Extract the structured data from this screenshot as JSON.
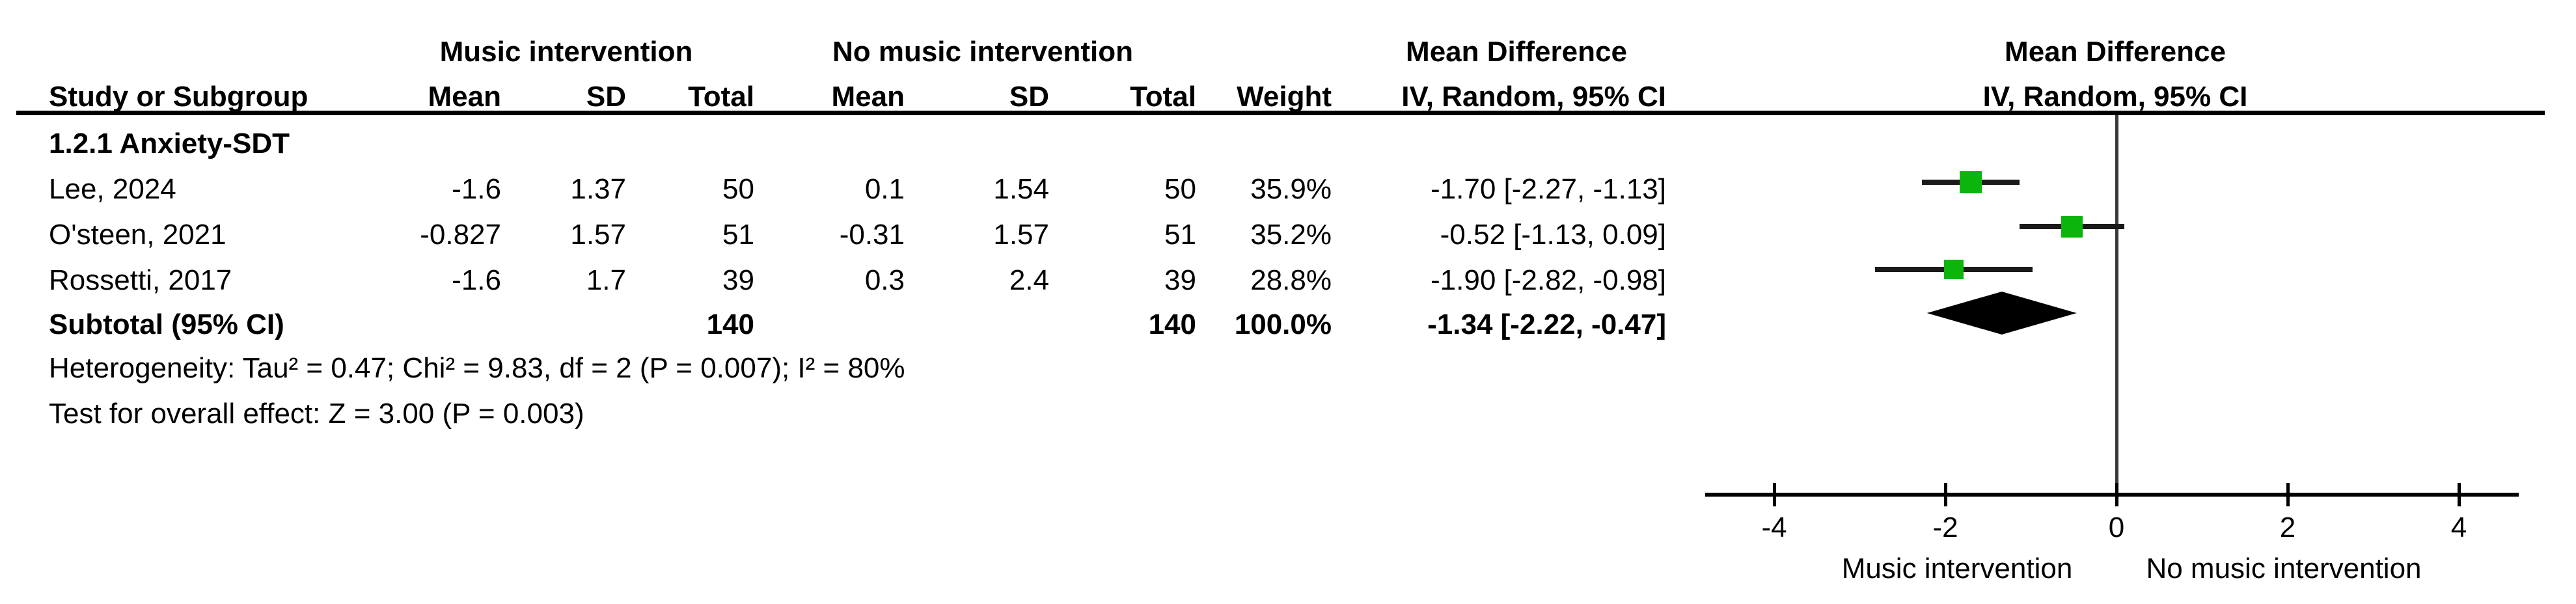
{
  "title_row": {
    "group1": "Music intervention",
    "group2": "No music intervention",
    "md_text": "Mean Difference",
    "md_plot": "Mean Difference"
  },
  "columns": {
    "study": "Study or Subgroup",
    "mean1": "Mean",
    "sd1": "SD",
    "total1": "Total",
    "mean2": "Mean",
    "sd2": "SD",
    "total2": "Total",
    "weight": "Weight",
    "ci_text": "IV, Random, 95% CI",
    "ci_plot": "IV, Random, 95% CI"
  },
  "group_label": "1.2.1 Anxiety-SDT",
  "rows": [
    {
      "study": "Lee, 2024",
      "mean1": "-1.6",
      "sd1": "1.37",
      "total1": "50",
      "mean2": "0.1",
      "sd2": "1.54",
      "total2": "50",
      "weight": "35.9%",
      "ci": "-1.70 [-2.27, -1.13]"
    },
    {
      "study": "O'steen, 2021",
      "mean1": "-0.827",
      "sd1": "1.57",
      "total1": "51",
      "mean2": "-0.31",
      "sd2": "1.57",
      "total2": "51",
      "weight": "35.2%",
      "ci": "-0.52 [-1.13, 0.09]"
    },
    {
      "study": "Rossetti, 2017",
      "mean1": "-1.6",
      "sd1": "1.7",
      "total1": "39",
      "mean2": "0.3",
      "sd2": "2.4",
      "total2": "39",
      "weight": "28.8%",
      "ci": "-1.90 [-2.82, -0.98]"
    }
  ],
  "subtotal": {
    "label": "Subtotal (95% CI)",
    "total1": "140",
    "total2": "140",
    "weight": "100.0%",
    "ci": "-1.34 [-2.22, -0.47]"
  },
  "stats": {
    "heterogeneity": "Heterogeneity: Tau² = 0.47; Chi² = 9.83, df = 2 (P = 0.007); I² = 80%",
    "overall": "Test for overall effect: Z = 3.00 (P = 0.003)"
  },
  "axis_labels": {
    "left": "Music intervention",
    "right": "No music intervention"
  },
  "chart_data": {
    "type": "forest",
    "title": "Mean Difference",
    "effect_measure": "IV, Random, 95% CI",
    "subgroup": "1.2.1 Anxiety-SDT",
    "studies": [
      {
        "name": "Lee, 2024",
        "est": -1.7,
        "ci_low": -2.27,
        "ci_high": -1.13,
        "weight_pct": 35.9
      },
      {
        "name": "O'steen, 2021",
        "est": -0.52,
        "ci_low": -1.13,
        "ci_high": 0.09,
        "weight_pct": 35.2
      },
      {
        "name": "Rossetti, 2017",
        "est": -1.9,
        "ci_low": -2.82,
        "ci_high": -0.98,
        "weight_pct": 28.8
      }
    ],
    "subtotal": {
      "est": -1.34,
      "ci_low": -2.22,
      "ci_high": -0.47,
      "total_music": 140,
      "total_no_music": 140,
      "weight_pct": 100.0
    },
    "heterogeneity": {
      "tau2": 0.47,
      "chi2": 9.83,
      "df": 2,
      "p": 0.007,
      "i2_pct": 80
    },
    "overall_effect": {
      "z": 3.0,
      "p": 0.003
    },
    "axis": {
      "min": -4,
      "max": 4,
      "ticks": [
        -4,
        -2,
        0,
        2,
        4
      ]
    },
    "xlabel_left": "Music intervention",
    "xlabel_right": "No music intervention",
    "square_color": "#0cb50c",
    "diamond_color": "#000000",
    "ci_color": "#1a1a1a",
    "zero_line_color": "#3a3a3a",
    "axis_color": "#000000"
  }
}
